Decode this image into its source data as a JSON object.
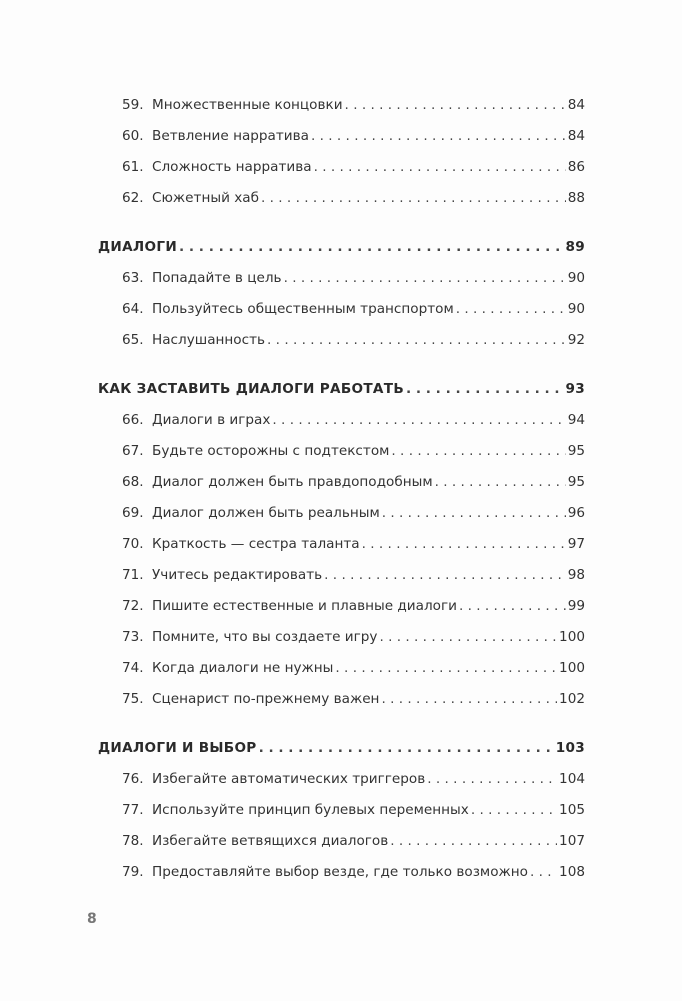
{
  "sections": [
    {
      "title": null,
      "page": null,
      "items": [
        {
          "num": "59.",
          "title": "Множественные концовки",
          "page": "84"
        },
        {
          "num": "60.",
          "title": "Ветвление нарратива",
          "page": "84"
        },
        {
          "num": "61.",
          "title": "Сложность нарратива",
          "page": "86"
        },
        {
          "num": "62.",
          "title": "Сюжетный хаб",
          "page": "88"
        }
      ]
    },
    {
      "title": "ДИАЛОГИ",
      "page": "89",
      "items": [
        {
          "num": "63.",
          "title": "Попадайте в цель",
          "page": "90"
        },
        {
          "num": "64.",
          "title": "Пользуйтесь общественным транспортом",
          "page": "90"
        },
        {
          "num": "65.",
          "title": "Наслушанность",
          "page": "92"
        }
      ]
    },
    {
      "title": "КАК ЗАСТАВИТЬ ДИАЛОГИ РАБОТАТЬ",
      "page": "93",
      "items": [
        {
          "num": "66.",
          "title": "Диалоги в играх",
          "page": "94"
        },
        {
          "num": "67.",
          "title": "Будьте осторожны с подтекстом",
          "page": "95"
        },
        {
          "num": "68.",
          "title": "Диалог должен быть правдоподобным",
          "page": "95"
        },
        {
          "num": "69.",
          "title": "Диалог должен быть реальным",
          "page": "96"
        },
        {
          "num": "70.",
          "title": "Краткость — сестра таланта",
          "page": "97"
        },
        {
          "num": "71.",
          "title": "Учитесь редактировать",
          "page": "98"
        },
        {
          "num": "72.",
          "title": "Пишите естественные и плавные диалоги",
          "page": "99"
        },
        {
          "num": "73.",
          "title": "Помните, что вы создаете игру",
          "page": "100"
        },
        {
          "num": "74.",
          "title": "Когда диалоги не нужны",
          "page": "100"
        },
        {
          "num": "75.",
          "title": "Сценарист по-прежнему важен",
          "page": "102"
        }
      ]
    },
    {
      "title": "ДИАЛОГИ И ВЫБОР",
      "page": "103",
      "items": [
        {
          "num": "76.",
          "title": "Избегайте автоматических триггеров",
          "page": "104"
        },
        {
          "num": "77.",
          "title": "Используйте принцип булевых переменных",
          "page": "105"
        },
        {
          "num": "78.",
          "title": "Избегайте ветвящихся диалогов",
          "page": "107"
        },
        {
          "num": "79.",
          "title": "Предоставляйте выбор везде, где только возможно",
          "page": "108"
        }
      ]
    }
  ],
  "page_number": "8"
}
